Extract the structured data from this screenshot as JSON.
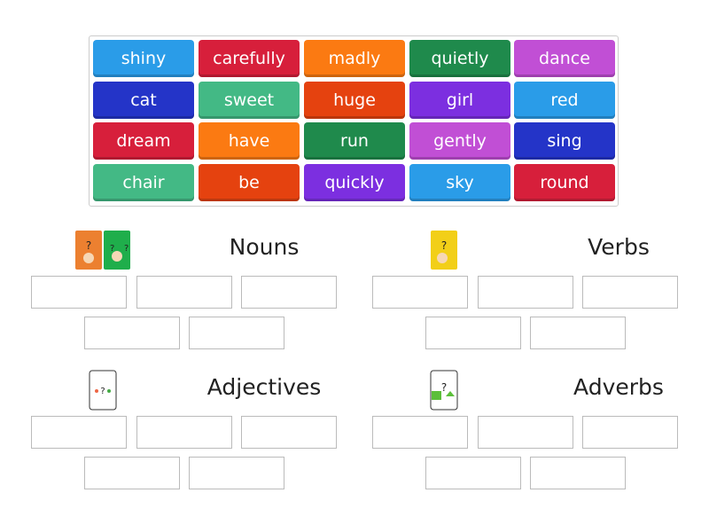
{
  "tiles": [
    {
      "label": "shiny",
      "color": "#2a9ce8"
    },
    {
      "label": "carefully",
      "color": "#d71f3b"
    },
    {
      "label": "madly",
      "color": "#fb7a12"
    },
    {
      "label": "quietly",
      "color": "#1f8a4c"
    },
    {
      "label": "dance",
      "color": "#c14fd5"
    },
    {
      "label": "cat",
      "color": "#2434c8"
    },
    {
      "label": "sweet",
      "color": "#43b985"
    },
    {
      "label": "huge",
      "color": "#e5420f"
    },
    {
      "label": "girl",
      "color": "#7c2fe0"
    },
    {
      "label": "red",
      "color": "#2a9ce8"
    },
    {
      "label": "dream",
      "color": "#d71f3b"
    },
    {
      "label": "have",
      "color": "#fb7a12"
    },
    {
      "label": "run",
      "color": "#1f8a4c"
    },
    {
      "label": "gently",
      "color": "#c14fd5"
    },
    {
      "label": "sing",
      "color": "#2434c8"
    },
    {
      "label": "chair",
      "color": "#43b985"
    },
    {
      "label": "be",
      "color": "#e5420f"
    },
    {
      "label": "quickly",
      "color": "#7c2fe0"
    },
    {
      "label": "sky",
      "color": "#2a9ce8"
    },
    {
      "label": "round",
      "color": "#d71f3b"
    }
  ],
  "groups": [
    {
      "title": "Nouns",
      "icon": "who-what-cards-icon"
    },
    {
      "title": "Verbs",
      "icon": "doing-what-card-icon"
    },
    {
      "title": "Adjectives",
      "icon": "what-like-card-icon"
    },
    {
      "title": "Adverbs",
      "icon": "how-card-icon"
    }
  ]
}
